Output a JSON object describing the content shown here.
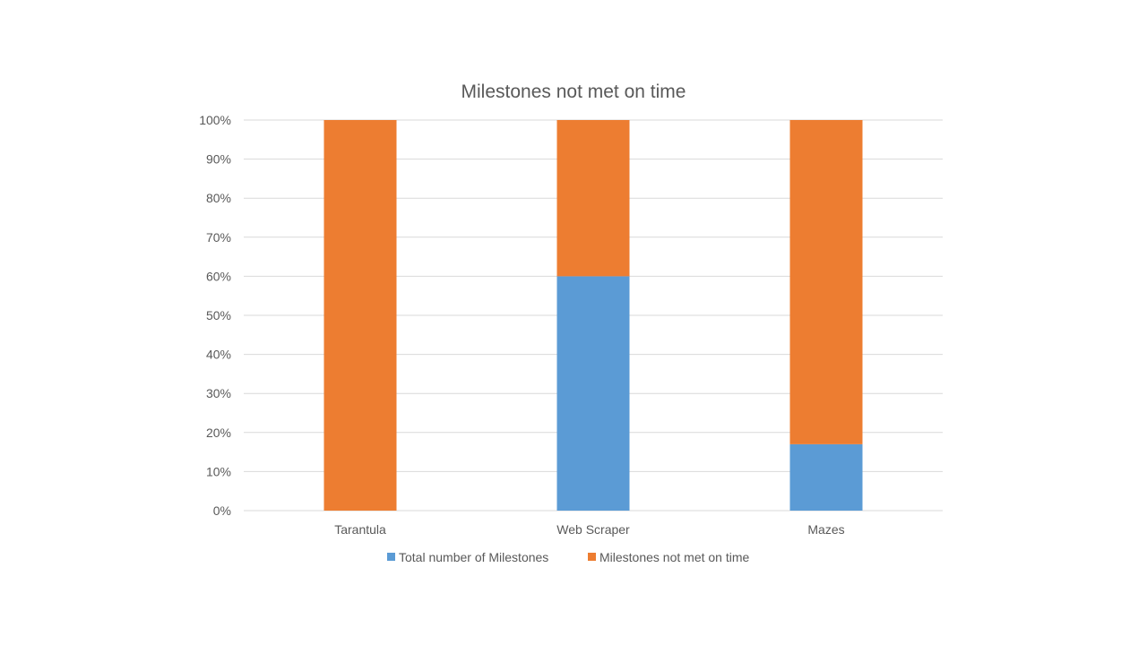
{
  "chart_data": {
    "type": "bar",
    "stacked": "percent",
    "title": "Milestones not met on time",
    "xlabel": "",
    "ylabel": "",
    "categories": [
      "Tarantula",
      "Web Scraper",
      "Mazes"
    ],
    "series": [
      {
        "name": "Total number of Milestones",
        "color": "#5b9bd5",
        "values": [
          0,
          60,
          17
        ]
      },
      {
        "name": "Milestones not met on time",
        "color": "#ed7d31",
        "values": [
          100,
          40,
          83
        ]
      }
    ],
    "ylim": [
      0,
      100
    ],
    "y_ticks": [
      "0%",
      "10%",
      "20%",
      "30%",
      "40%",
      "50%",
      "60%",
      "70%",
      "80%",
      "90%",
      "100%"
    ],
    "grid": true,
    "legend_position": "bottom"
  }
}
